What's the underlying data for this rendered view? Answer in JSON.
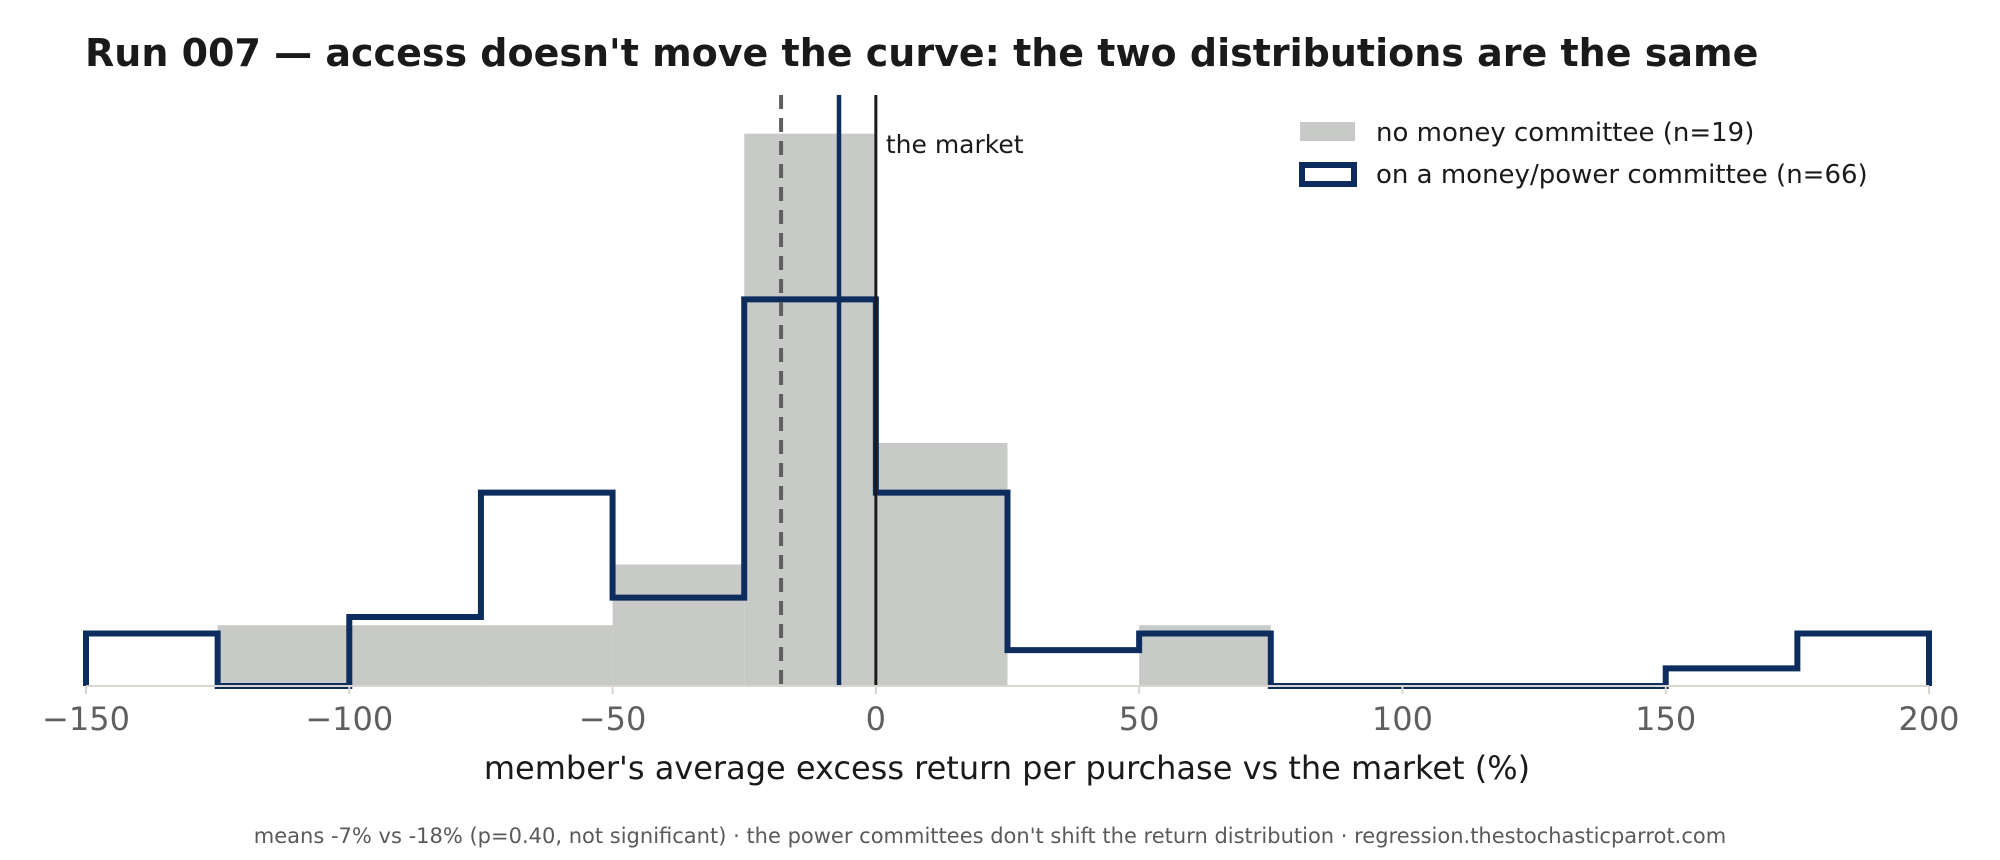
{
  "chart_data": {
    "type": "histogram",
    "title": "Run 007 — access doesn't move the curve: the two distributions are the same",
    "xlabel": "member's average excess return per purchase vs the market (%)",
    "ylabel": "",
    "xlim": [
      -150,
      200
    ],
    "ylim": [
      0,
      1.07
    ],
    "x_ticks": [
      -150,
      -100,
      -50,
      0,
      50,
      100,
      150,
      200
    ],
    "x_tick_labels": [
      "−150",
      "−100",
      "−50",
      "0",
      "50",
      "100",
      "150",
      "200"
    ],
    "grid": false,
    "legend_position": "top-right",
    "bin_edges": [
      -150,
      -125,
      -100,
      -75,
      -50,
      -25,
      0,
      25,
      50,
      75,
      100,
      125,
      150,
      175,
      200
    ],
    "series": [
      {
        "name": "no money committee (n=19)",
        "style": "filled-bars",
        "color": "#c8cac7",
        "density": [
          0.0,
          0.11,
          0.11,
          0.11,
          0.22,
          1.0,
          0.44,
          0.0,
          0.11,
          0.0,
          0.0,
          0.0,
          0.0,
          0.0
        ]
      },
      {
        "name": "on a money/power committee (n=66)",
        "style": "step-outline",
        "color": "#0d2d5e",
        "density": [
          0.095,
          0.0,
          0.125,
          0.35,
          0.16,
          0.7,
          0.35,
          0.065,
          0.095,
          0.0,
          0.0,
          0.0,
          0.032,
          0.095
        ]
      }
    ],
    "reference_lines": [
      {
        "role": "market",
        "x": 0,
        "label": "the market",
        "color": "#1a1a1a",
        "style": "solid"
      },
      {
        "role": "mean-committee",
        "x": -7,
        "label": "",
        "color": "#0d2d5e",
        "style": "solid"
      },
      {
        "role": "mean-no-committee",
        "x": -18,
        "label": "",
        "color": "#5f5f5f",
        "style": "dashed"
      }
    ],
    "footer": "means -7% vs -18% (p=0.40, not significant) · the power committees don't shift the return distribution · regression.thestochasticparrot.com"
  }
}
